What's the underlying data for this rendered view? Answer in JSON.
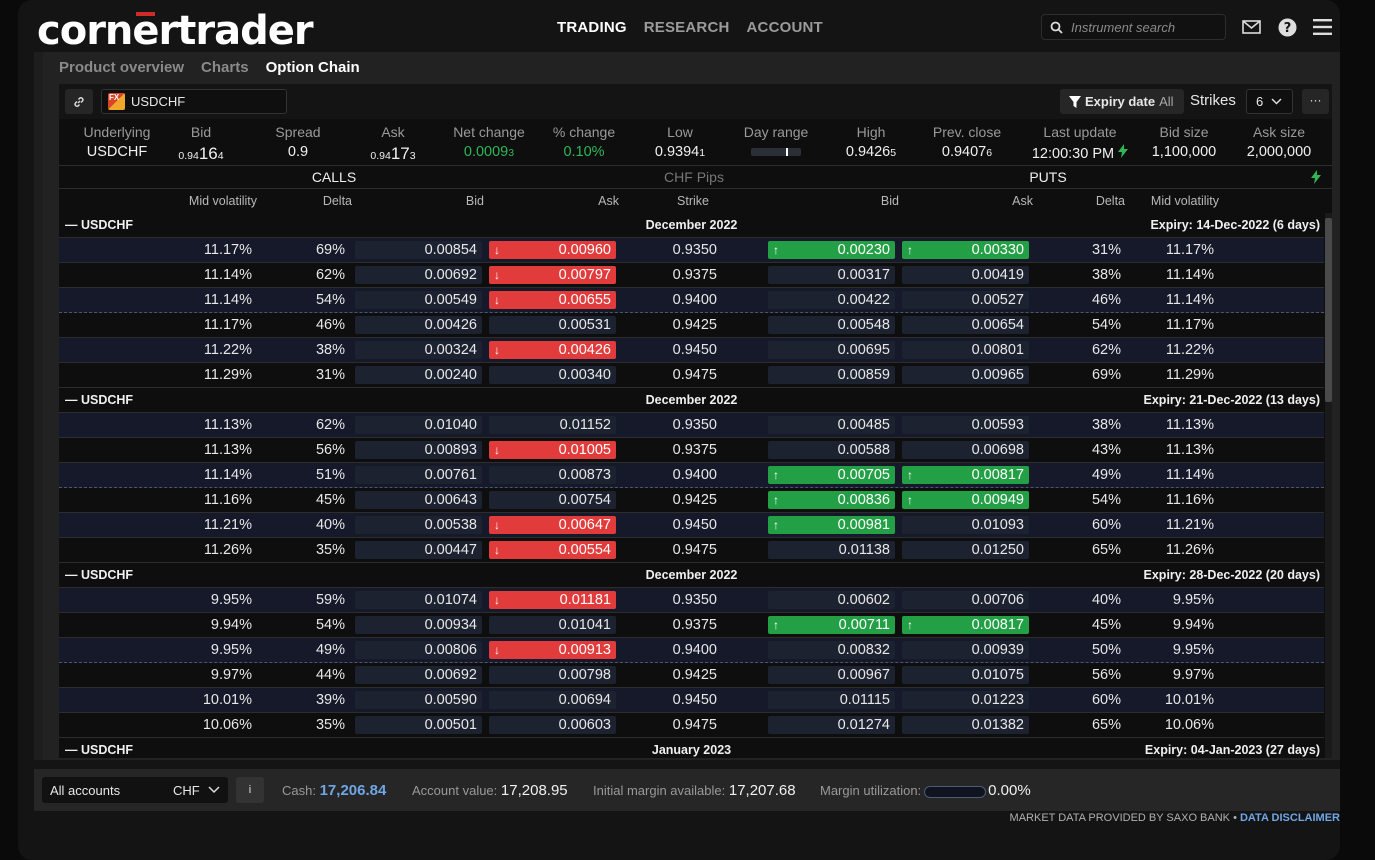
{
  "app": {
    "logo_pre": "corn",
    "logo_mark": "e",
    "logo_post": "rtrader",
    "nav": [
      "TRADING",
      "RESEARCH",
      "ACCOUNT"
    ],
    "search_placeholder": "Instrument search"
  },
  "subtabs": [
    "Product overview",
    "Charts",
    "Option Chain"
  ],
  "toolbar": {
    "instrument": "USDCHF",
    "fx_badge": "FX",
    "expiry_label": "Expiry date",
    "expiry_value": "All",
    "strikes_label": "Strikes",
    "strikes_value": "6",
    "more": "···"
  },
  "summary": {
    "underlying": {
      "label": "Underlying",
      "value": "USDCHF"
    },
    "bid": {
      "label": "Bid",
      "a": "0.94",
      "b": "16",
      "c": "4"
    },
    "spread": {
      "label": "Spread",
      "value": "0.9"
    },
    "ask": {
      "label": "Ask",
      "a": "0.94",
      "b": "17",
      "c": "3"
    },
    "net_change": {
      "label": "Net change",
      "a": "0.0009",
      "b": "3"
    },
    "pct_change": {
      "label": "% change",
      "value": "0.10%"
    },
    "low": {
      "label": "Low",
      "a": "0.9394",
      "b": "1"
    },
    "day_range": {
      "label": "Day range"
    },
    "high": {
      "label": "High",
      "a": "0.9426",
      "b": "5"
    },
    "prev_close": {
      "label": "Prev. close",
      "a": "0.9407",
      "b": "6"
    },
    "last_update": {
      "label": "Last update",
      "value": "12:00:30 PM"
    },
    "bid_size": {
      "label": "Bid size",
      "value": "1,100,000"
    },
    "ask_size": {
      "label": "Ask size",
      "value": "2,000,000"
    }
  },
  "grid_header": {
    "calls": "CALLS",
    "pips": "CHF Pips",
    "puts": "PUTS",
    "cols": {
      "call_vol": "Mid volatility",
      "call_delta": "Delta",
      "call_bid": "Bid",
      "call_ask": "Ask",
      "strike": "Strike",
      "put_bid": "Bid",
      "put_ask": "Ask",
      "put_delta": "Delta",
      "put_vol": "Mid volatility"
    }
  },
  "groups": [
    {
      "name": "USDCHF",
      "month": "December 2022",
      "expiry": "Expiry: 14-Dec-2022 (6 days)",
      "rows": [
        {
          "cv": "11.17%",
          "cd": "69%",
          "cb": "0.00854",
          "ca": "0.00960",
          "k": "0.9350",
          "pb": "0.00230",
          "pa": "0.00330",
          "pd": "31%",
          "pv": "11.17%",
          "cbs": "",
          "cas": "down",
          "pbs": "up",
          "pas": "up"
        },
        {
          "cv": "11.14%",
          "cd": "62%",
          "cb": "0.00692",
          "ca": "0.00797",
          "k": "0.9375",
          "pb": "0.00317",
          "pa": "0.00419",
          "pd": "38%",
          "pv": "11.14%",
          "cbs": "",
          "cas": "down",
          "pbs": "",
          "pas": ""
        },
        {
          "cv": "11.14%",
          "cd": "54%",
          "cb": "0.00549",
          "ca": "0.00655",
          "k": "0.9400",
          "pb": "0.00422",
          "pa": "0.00527",
          "pd": "46%",
          "pv": "11.14%",
          "cbs": "",
          "cas": "down",
          "pbs": "",
          "pas": ""
        },
        {
          "cv": "11.17%",
          "cd": "46%",
          "cb": "0.00426",
          "ca": "0.00531",
          "k": "0.9425",
          "pb": "0.00548",
          "pa": "0.00654",
          "pd": "54%",
          "pv": "11.17%",
          "cbs": "",
          "cas": "",
          "pbs": "",
          "pas": ""
        },
        {
          "cv": "11.22%",
          "cd": "38%",
          "cb": "0.00324",
          "ca": "0.00426",
          "k": "0.9450",
          "pb": "0.00695",
          "pa": "0.00801",
          "pd": "62%",
          "pv": "11.22%",
          "cbs": "",
          "cas": "down",
          "pbs": "",
          "pas": ""
        },
        {
          "cv": "11.29%",
          "cd": "31%",
          "cb": "0.00240",
          "ca": "0.00340",
          "k": "0.9475",
          "pb": "0.00859",
          "pa": "0.00965",
          "pd": "69%",
          "pv": "11.29%",
          "cbs": "",
          "cas": "",
          "pbs": "",
          "pas": ""
        }
      ]
    },
    {
      "name": "USDCHF",
      "month": "December 2022",
      "expiry": "Expiry: 21-Dec-2022 (13 days)",
      "rows": [
        {
          "cv": "11.13%",
          "cd": "62%",
          "cb": "0.01040",
          "ca": "0.01152",
          "k": "0.9350",
          "pb": "0.00485",
          "pa": "0.00593",
          "pd": "38%",
          "pv": "11.13%",
          "cbs": "",
          "cas": "",
          "pbs": "",
          "pas": ""
        },
        {
          "cv": "11.13%",
          "cd": "56%",
          "cb": "0.00893",
          "ca": "0.01005",
          "k": "0.9375",
          "pb": "0.00588",
          "pa": "0.00698",
          "pd": "43%",
          "pv": "11.13%",
          "cbs": "",
          "cas": "down",
          "pbs": "",
          "pas": ""
        },
        {
          "cv": "11.14%",
          "cd": "51%",
          "cb": "0.00761",
          "ca": "0.00873",
          "k": "0.9400",
          "pb": "0.00705",
          "pa": "0.00817",
          "pd": "49%",
          "pv": "11.14%",
          "cbs": "",
          "cas": "",
          "pbs": "up",
          "pas": "up"
        },
        {
          "cv": "11.16%",
          "cd": "45%",
          "cb": "0.00643",
          "ca": "0.00754",
          "k": "0.9425",
          "pb": "0.00836",
          "pa": "0.00949",
          "pd": "54%",
          "pv": "11.16%",
          "cbs": "",
          "cas": "",
          "pbs": "up",
          "pas": "up"
        },
        {
          "cv": "11.21%",
          "cd": "40%",
          "cb": "0.00538",
          "ca": "0.00647",
          "k": "0.9450",
          "pb": "0.00981",
          "pa": "0.01093",
          "pd": "60%",
          "pv": "11.21%",
          "cbs": "",
          "cas": "down",
          "pbs": "up",
          "pas": ""
        },
        {
          "cv": "11.26%",
          "cd": "35%",
          "cb": "0.00447",
          "ca": "0.00554",
          "k": "0.9475",
          "pb": "0.01138",
          "pa": "0.01250",
          "pd": "65%",
          "pv": "11.26%",
          "cbs": "",
          "cas": "down",
          "pbs": "",
          "pas": ""
        }
      ]
    },
    {
      "name": "USDCHF",
      "month": "December 2022",
      "expiry": "Expiry: 28-Dec-2022 (20 days)",
      "rows": [
        {
          "cv": "9.95%",
          "cd": "59%",
          "cb": "0.01074",
          "ca": "0.01181",
          "k": "0.9350",
          "pb": "0.00602",
          "pa": "0.00706",
          "pd": "40%",
          "pv": "9.95%",
          "cbs": "",
          "cas": "down",
          "pbs": "",
          "pas": ""
        },
        {
          "cv": "9.94%",
          "cd": "54%",
          "cb": "0.00934",
          "ca": "0.01041",
          "k": "0.9375",
          "pb": "0.00711",
          "pa": "0.00817",
          "pd": "45%",
          "pv": "9.94%",
          "cbs": "",
          "cas": "",
          "pbs": "up",
          "pas": "up"
        },
        {
          "cv": "9.95%",
          "cd": "49%",
          "cb": "0.00806",
          "ca": "0.00913",
          "k": "0.9400",
          "pb": "0.00832",
          "pa": "0.00939",
          "pd": "50%",
          "pv": "9.95%",
          "cbs": "",
          "cas": "down",
          "pbs": "",
          "pas": ""
        },
        {
          "cv": "9.97%",
          "cd": "44%",
          "cb": "0.00692",
          "ca": "0.00798",
          "k": "0.9425",
          "pb": "0.00967",
          "pa": "0.01075",
          "pd": "56%",
          "pv": "9.97%",
          "cbs": "",
          "cas": "",
          "pbs": "",
          "pas": ""
        },
        {
          "cv": "10.01%",
          "cd": "39%",
          "cb": "0.00590",
          "ca": "0.00694",
          "k": "0.9450",
          "pb": "0.01115",
          "pa": "0.01223",
          "pd": "60%",
          "pv": "10.01%",
          "cbs": "",
          "cas": "",
          "pbs": "",
          "pas": ""
        },
        {
          "cv": "10.06%",
          "cd": "35%",
          "cb": "0.00501",
          "ca": "0.00603",
          "k": "0.9475",
          "pb": "0.01274",
          "pa": "0.01382",
          "pd": "65%",
          "pv": "10.06%",
          "cbs": "",
          "cas": "",
          "pbs": "",
          "pas": ""
        }
      ]
    },
    {
      "name": "USDCHF",
      "month": "January 2023",
      "expiry": "Expiry: 04-Jan-2023 (27 days)",
      "rows": []
    }
  ],
  "footer": {
    "account": "All accounts",
    "currency": "CHF",
    "info": "i",
    "cash_label": "Cash:",
    "cash_value": "17,206.84",
    "account_value_label": "Account value:",
    "account_value": "17,208.95",
    "margin_avail_label": "Initial margin available:",
    "margin_avail": "17,207.68",
    "margin_util_label": "Margin utilization:",
    "margin_util": "0.00%"
  },
  "disclaimer": {
    "text": "MARKET DATA PROVIDED BY SAXO BANK •",
    "link": "DATA DISCLAIMER"
  },
  "colors": {
    "accent_blue": "#6fa6e6",
    "up_green": "#23a046",
    "down_red": "#e23b3b",
    "logo_red": "#d12a2a"
  }
}
